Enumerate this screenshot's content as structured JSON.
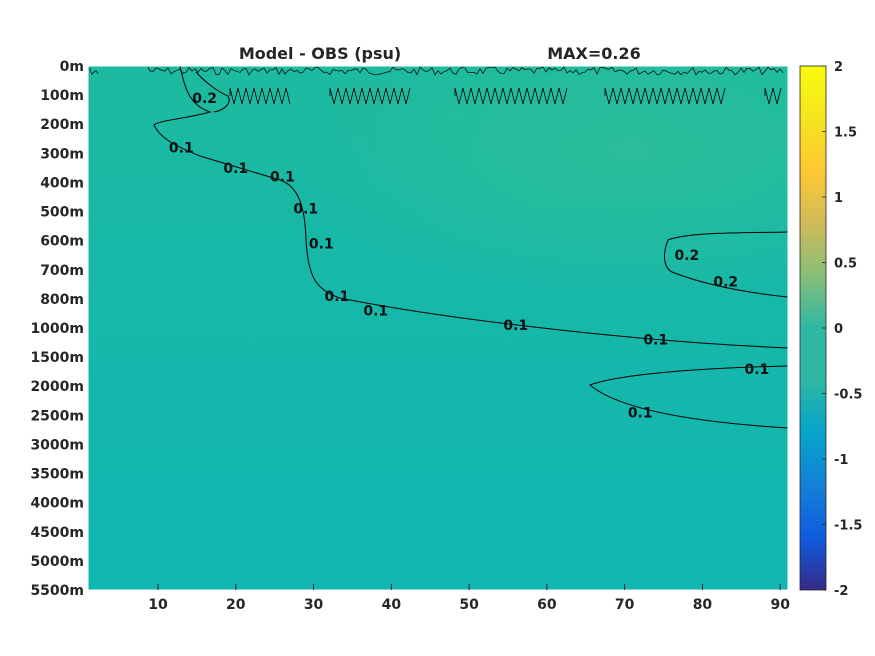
{
  "chart_data": {
    "type": "heatmap",
    "title": "Model - OBS (psu)",
    "max_label": "MAX=0.26",
    "x_ticks": [
      10,
      20,
      30,
      40,
      50,
      60,
      70,
      80,
      90
    ],
    "xlim": [
      1,
      91
    ],
    "y_ticks": [
      "0m",
      "100m",
      "200m",
      "300m",
      "400m",
      "500m",
      "600m",
      "700m",
      "800m",
      "1000m",
      "1500m",
      "2000m",
      "2500m",
      "3000m",
      "3500m",
      "4000m",
      "4500m",
      "5000m",
      "5500m"
    ],
    "colorbar": {
      "range": [
        -2,
        2
      ],
      "ticks": [
        "2",
        "1.5",
        "1",
        "0.5",
        "0",
        "-0.5",
        "-1",
        "-1.5",
        "-2"
      ],
      "colormap": "parula"
    },
    "field_colors": {
      "background": "#17b8a9",
      "lighter_region": "#26bc9c",
      "deep": "#0fb6b2"
    },
    "contours": [
      {
        "level": "0.1",
        "label_positions": [
          {
            "x": 13,
            "depth_index": 2.8
          },
          {
            "x": 20,
            "depth_index": 3.5
          },
          {
            "x": 26,
            "depth_index": 3.8
          },
          {
            "x": 29,
            "depth_index": 4.9
          },
          {
            "x": 31,
            "depth_index": 6.1
          },
          {
            "x": 33,
            "depth_index": 7.9
          },
          {
            "x": 38,
            "depth_index": 8.4
          },
          {
            "x": 56,
            "depth_index": 8.9
          },
          {
            "x": 74,
            "depth_index": 9.4
          },
          {
            "x": 87,
            "depth_index": 10.4
          },
          {
            "x": 72,
            "depth_index": 11.9
          }
        ]
      },
      {
        "level": "0.2",
        "label_positions": [
          {
            "x": 16,
            "depth_index": 1.1
          },
          {
            "x": 78,
            "depth_index": 6.5
          },
          {
            "x": 83,
            "depth_index": 7.4
          }
        ]
      }
    ]
  }
}
